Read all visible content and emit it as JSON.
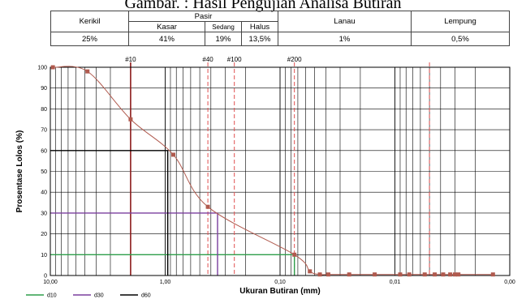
{
  "caption": "Gambar. : Hasil Pengujian Analisa Butiran",
  "grain_table": {
    "headers": {
      "kerikil": "Kerikil",
      "pasir": "Pasir",
      "kasar": "Kasar",
      "sedang": "Sedang",
      "halus": "Halus",
      "lanau": "Lanau",
      "lempung": "Lempung"
    },
    "values": {
      "kerikil": "25%",
      "kasar": "41%",
      "sedang": "19%",
      "halus": "13,5%",
      "lanau": "1%",
      "lempung": "0,5%"
    }
  },
  "chart_data": {
    "type": "line",
    "x_scale": "log",
    "x_reversed": true,
    "xlim": [
      10,
      0.001
    ],
    "ylim": [
      0,
      100
    ],
    "xlabel": "Ukuran Butiran (mm)",
    "ylabel": "Prosentase Lolos (%)",
    "x_ticks": [
      {
        "value": 10,
        "label": "10,00"
      },
      {
        "value": 1,
        "label": "1,00"
      },
      {
        "value": 0.1,
        "label": "0,10"
      },
      {
        "value": 0.01,
        "label": "0,01"
      },
      {
        "value": 0.001,
        "label": "0,00"
      }
    ],
    "y_ticks": [
      0,
      10,
      20,
      30,
      40,
      50,
      60,
      70,
      80,
      90,
      100
    ],
    "grid": true,
    "series": [
      {
        "color": "#b05a4e",
        "x": [
          9.5,
          4.75,
          2.0,
          0.85,
          0.425,
          0.075,
          0.055,
          0.045,
          0.038,
          0.025,
          0.015,
          0.009,
          0.0075,
          0.0055,
          0.0045,
          0.0038,
          0.0033,
          0.003,
          0.0028,
          0.0014
        ],
        "y": [
          100,
          98,
          75,
          58,
          33,
          10,
          2,
          0.5,
          0.5,
          0.5,
          0.5,
          0.5,
          0.5,
          0.5,
          0.5,
          0.5,
          0.5,
          0.5,
          0.5,
          0.5
        ]
      }
    ],
    "sieve_lines": [
      {
        "label": "#10",
        "x": 2.0,
        "color": "#8b1a1a",
        "style": "solid"
      },
      {
        "label": "#40",
        "x": 0.425,
        "color": "#e05050",
        "style": "dashed"
      },
      {
        "label": "#100",
        "x": 0.25,
        "color": "#e05050",
        "style": "dashed"
      },
      {
        "label": "#200",
        "x": 0.075,
        "color": "#e05050",
        "style": "dashed"
      }
    ],
    "boundary_lines": [
      {
        "x": 0.005,
        "color": "#e05050",
        "style": "dashed"
      }
    ],
    "d_lines": [
      {
        "label": "d10",
        "x": 0.075,
        "y": 10,
        "color": "#2e9e4a"
      },
      {
        "label": "d30",
        "x": 0.35,
        "y": 30,
        "color": "#7b3f9e"
      },
      {
        "label": "d60",
        "x": 0.95,
        "y": 60,
        "color": "#000000"
      }
    ],
    "legend_position": "bottom-left"
  }
}
